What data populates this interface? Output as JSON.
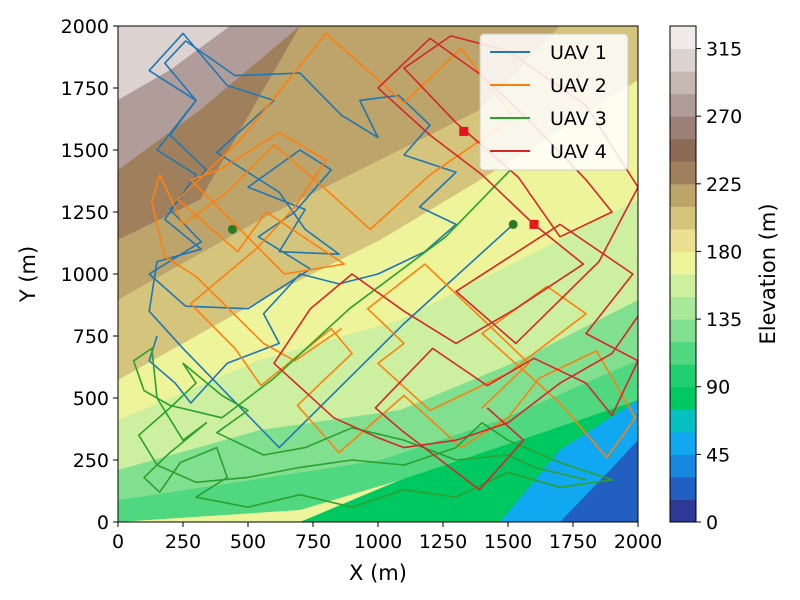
{
  "chart_data": {
    "type": "line",
    "title": "",
    "xlabel": "X (m)",
    "ylabel": "Y (m)",
    "xlim": [
      0,
      2000
    ],
    "ylim": [
      0,
      2000
    ],
    "xticks": [
      "0",
      "250",
      "500",
      "750",
      "1000",
      "1250",
      "1500",
      "1750",
      "2000"
    ],
    "yticks": [
      "0",
      "250",
      "500",
      "750",
      "1000",
      "1250",
      "1500",
      "1750",
      "2000"
    ],
    "legend_position": "top-right",
    "colorbar": {
      "label": "Elevation (m)",
      "ticks": [
        "0",
        "45",
        "90",
        "135",
        "180",
        "225",
        "270",
        "315"
      ],
      "range": [
        0,
        330
      ],
      "colors": [
        "#2e3a98",
        "#2160c0",
        "#1788e0",
        "#10a8f0",
        "#05c0c0",
        "#00c860",
        "#20d070",
        "#50d880",
        "#80e090",
        "#a8e898",
        "#ccf0a0",
        "#eef49a",
        "#ece090",
        "#d4c47c",
        "#bca46a",
        "#a0805c",
        "#8c6a56",
        "#9c8078",
        "#b09c98",
        "#c8b8b4",
        "#dcd2cf",
        "#f0ebea"
      ]
    },
    "series": [
      {
        "name": "UAV 1",
        "color": "#1f77b4",
        "start": [
          1520,
          1200
        ],
        "points": [
          [
            1520,
            1200
          ],
          [
            1100,
            800
          ],
          [
            620,
            300
          ],
          [
            250,
            700
          ],
          [
            120,
            850
          ],
          [
            150,
            1050
          ],
          [
            320,
            1100
          ],
          [
            180,
            1220
          ],
          [
            300,
            1400
          ],
          [
            150,
            1500
          ],
          [
            300,
            1700
          ],
          [
            120,
            1820
          ],
          [
            250,
            1970
          ],
          [
            420,
            1760
          ],
          [
            600,
            1700
          ],
          [
            380,
            1490
          ],
          [
            620,
            1330
          ],
          [
            720,
            1180
          ],
          [
            850,
            1080
          ],
          [
            620,
            1090
          ],
          [
            720,
            1260
          ],
          [
            500,
            1350
          ],
          [
            700,
            1500
          ],
          [
            820,
            1420
          ],
          [
            680,
            1250
          ],
          [
            540,
            1150
          ],
          [
            740,
            1020
          ],
          [
            500,
            860
          ],
          [
            260,
            870
          ],
          [
            120,
            1000
          ],
          [
            320,
            1130
          ],
          [
            200,
            1260
          ],
          [
            340,
            1420
          ],
          [
            200,
            1560
          ],
          [
            300,
            1700
          ],
          [
            180,
            1850
          ],
          [
            260,
            1940
          ],
          [
            450,
            1800
          ],
          [
            700,
            1810
          ],
          [
            860,
            1640
          ],
          [
            1000,
            1550
          ],
          [
            930,
            1700
          ],
          [
            1080,
            1720
          ],
          [
            1200,
            1600
          ],
          [
            1100,
            1480
          ],
          [
            1300,
            1410
          ],
          [
            1160,
            1270
          ],
          [
            1300,
            1200
          ],
          [
            1180,
            1090
          ],
          [
            1000,
            1000
          ],
          [
            850,
            960
          ],
          [
            700,
            1000
          ],
          [
            560,
            840
          ],
          [
            620,
            720
          ],
          [
            420,
            640
          ],
          [
            280,
            480
          ],
          [
            220,
            560
          ],
          [
            120,
            650
          ],
          [
            150,
            750
          ]
        ]
      },
      {
        "name": "UAV 2",
        "color": "#ff7f0e",
        "start": [
          1600,
          1200
        ],
        "points": [
          [
            1400,
            460
          ],
          [
            1580,
            640
          ],
          [
            1180,
            1040
          ],
          [
            960,
            860
          ],
          [
            1100,
            720
          ],
          [
            1000,
            640
          ],
          [
            1200,
            450
          ],
          [
            1500,
            600
          ],
          [
            1800,
            840
          ],
          [
            1650,
            950
          ],
          [
            1400,
            760
          ],
          [
            1700,
            480
          ],
          [
            1880,
            260
          ],
          [
            1990,
            420
          ],
          [
            1840,
            690
          ],
          [
            1620,
            580
          ],
          [
            1500,
            420
          ],
          [
            1320,
            300
          ],
          [
            1100,
            510
          ],
          [
            850,
            280
          ],
          [
            690,
            470
          ],
          [
            900,
            680
          ],
          [
            820,
            780
          ],
          [
            550,
            550
          ],
          [
            450,
            700
          ],
          [
            280,
            880
          ],
          [
            530,
            1100
          ],
          [
            680,
            1270
          ],
          [
            800,
            1460
          ],
          [
            620,
            1570
          ],
          [
            390,
            1420
          ],
          [
            280,
            1380
          ],
          [
            640,
            1000
          ],
          [
            870,
            1040
          ],
          [
            570,
            1250
          ],
          [
            460,
            1090
          ],
          [
            230,
            1300
          ],
          [
            470,
            1540
          ],
          [
            800,
            1970
          ],
          [
            1100,
            1690
          ],
          [
            1320,
            1910
          ],
          [
            1520,
            1630
          ],
          [
            1200,
            1400
          ],
          [
            970,
            1180
          ],
          [
            790,
            1350
          ],
          [
            600,
            1520
          ],
          [
            420,
            1330
          ],
          [
            250,
            1200
          ],
          [
            160,
            1400
          ],
          [
            130,
            1290
          ],
          [
            180,
            1070
          ],
          [
            300,
            990
          ],
          [
            560,
            720
          ],
          [
            680,
            650
          ],
          [
            860,
            780
          ]
        ]
      },
      {
        "name": "UAV 3",
        "color": "#2ca02c",
        "start": [
          440,
          1180
        ],
        "points": [
          [
            1510,
            1420
          ],
          [
            1260,
            1150
          ],
          [
            890,
            860
          ],
          [
            600,
            580
          ],
          [
            400,
            420
          ],
          [
            200,
            470
          ],
          [
            100,
            530
          ],
          [
            60,
            650
          ],
          [
            130,
            700
          ],
          [
            150,
            500
          ],
          [
            250,
            330
          ],
          [
            340,
            400
          ],
          [
            200,
            280
          ],
          [
            100,
            180
          ],
          [
            160,
            120
          ],
          [
            240,
            240
          ],
          [
            380,
            300
          ],
          [
            420,
            180
          ],
          [
            300,
            100
          ],
          [
            500,
            60
          ],
          [
            700,
            110
          ],
          [
            900,
            60
          ],
          [
            1100,
            130
          ],
          [
            1300,
            100
          ],
          [
            1500,
            200
          ],
          [
            1700,
            140
          ],
          [
            1900,
            170
          ],
          [
            1700,
            240
          ],
          [
            1500,
            330
          ],
          [
            1400,
            400
          ],
          [
            1300,
            300
          ],
          [
            1100,
            230
          ],
          [
            900,
            250
          ],
          [
            700,
            220
          ],
          [
            500,
            180
          ],
          [
            300,
            160
          ],
          [
            150,
            230
          ],
          [
            80,
            350
          ],
          [
            200,
            460
          ],
          [
            300,
            560
          ],
          [
            250,
            640
          ],
          [
            400,
            510
          ],
          [
            500,
            450
          ],
          [
            380,
            360
          ],
          [
            560,
            270
          ],
          [
            720,
            300
          ],
          [
            900,
            380
          ],
          [
            1100,
            330
          ],
          [
            1300,
            250
          ],
          [
            1500,
            270
          ],
          [
            1600,
            220
          ],
          [
            1800,
            170
          ]
        ]
      },
      {
        "name": "UAV 4",
        "color": "#d62728",
        "start": [
          1330,
          1575
        ],
        "points": [
          [
            1420,
            460
          ],
          [
            1560,
            330
          ],
          [
            1390,
            130
          ],
          [
            1090,
            370
          ],
          [
            990,
            460
          ],
          [
            1210,
            700
          ],
          [
            1420,
            550
          ],
          [
            1600,
            660
          ],
          [
            1800,
            560
          ],
          [
            1900,
            430
          ],
          [
            2000,
            650
          ],
          [
            1800,
            760
          ],
          [
            1980,
            1000
          ],
          [
            1700,
            1200
          ],
          [
            1300,
            930
          ],
          [
            1530,
            720
          ],
          [
            1850,
            1050
          ],
          [
            2000,
            1350
          ],
          [
            1800,
            1680
          ],
          [
            1500,
            1900
          ],
          [
            1280,
            1960
          ],
          [
            1100,
            1830
          ],
          [
            1300,
            1610
          ],
          [
            1540,
            1390
          ],
          [
            1700,
            1150
          ],
          [
            1900,
            1250
          ],
          [
            1800,
            1380
          ],
          [
            1600,
            1600
          ],
          [
            1400,
            1800
          ],
          [
            1200,
            1950
          ],
          [
            1000,
            1750
          ],
          [
            1200,
            1560
          ],
          [
            1400,
            1400
          ],
          [
            1600,
            1200
          ],
          [
            1790,
            1040
          ],
          [
            1530,
            860
          ],
          [
            1300,
            720
          ],
          [
            1100,
            850
          ],
          [
            900,
            1000
          ],
          [
            740,
            860
          ],
          [
            600,
            640
          ],
          [
            830,
            420
          ],
          [
            1000,
            340
          ],
          [
            1100,
            300
          ],
          [
            1300,
            330
          ],
          [
            1500,
            400
          ],
          [
            1700,
            560
          ],
          [
            1900,
            680
          ],
          [
            2000,
            830
          ]
        ]
      }
    ]
  }
}
